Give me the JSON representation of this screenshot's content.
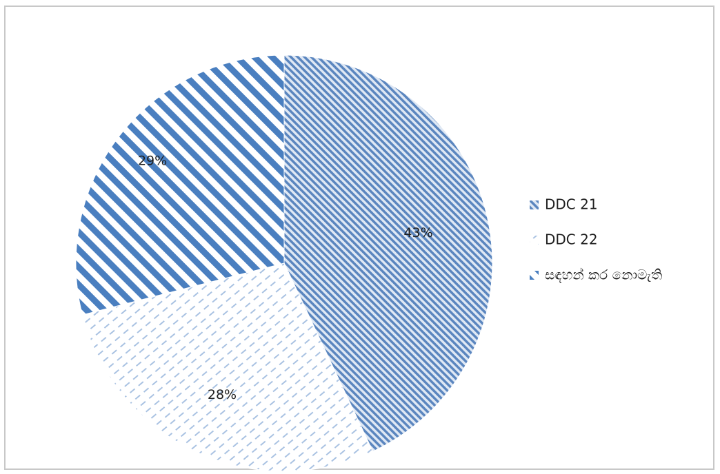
{
  "chart_data": {
    "type": "pie",
    "categories": [
      "DDC 21",
      "DDC 22",
      "සඳහන් කර නොමැති"
    ],
    "values": [
      43,
      28,
      29
    ],
    "value_labels": [
      "43%",
      "28%",
      "29%"
    ],
    "legend_position": "right",
    "colors": {
      "DDC 21": "#4f81bd",
      "DDC 22": "#95b3d7",
      "සඳහන් කර නොමැති": "#4f81bd"
    },
    "patterns": {
      "DDC 21": "fine-diagonal-hatch",
      "DDC 22": "dashed-diagonal-hatch",
      "සඳහන් කර නොමැති": "wide-diagonal-stripes"
    }
  }
}
